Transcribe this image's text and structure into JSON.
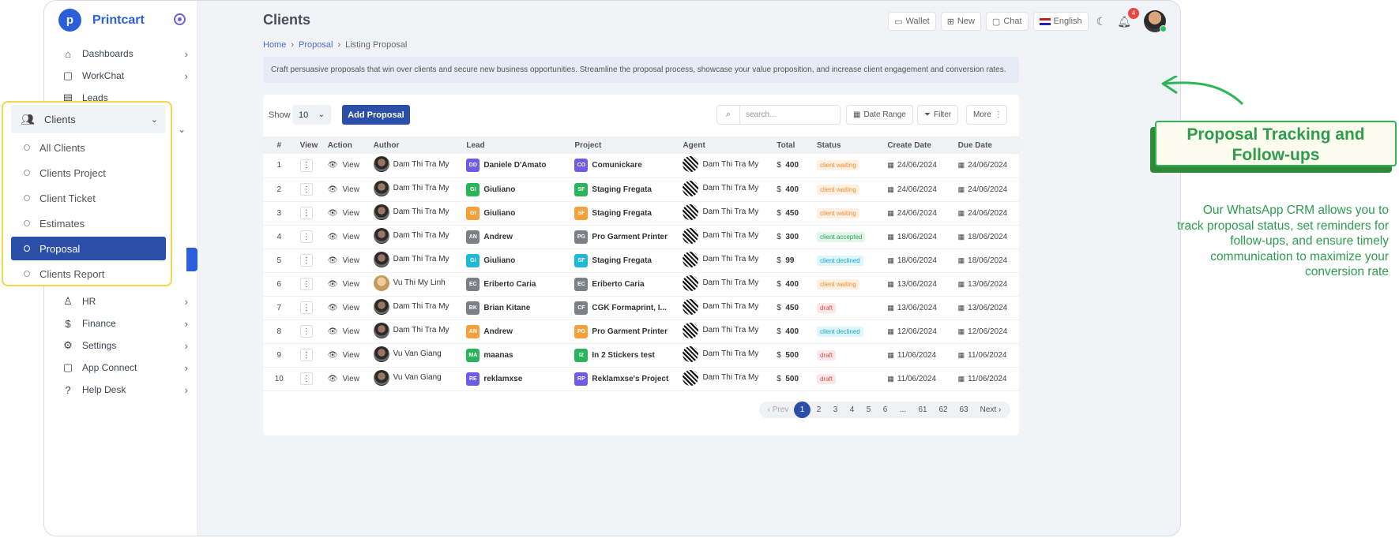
{
  "brand": {
    "name": "Printcart",
    "logo_letter": "p"
  },
  "sidebar": {
    "items": [
      {
        "label": "Dashboards",
        "icon": "home-icon",
        "top": 55
      },
      {
        "label": "WorkChat",
        "icon": "chat-icon",
        "top": 83
      },
      {
        "label": "Leads",
        "icon": "clipboard-icon",
        "top": 111
      },
      {
        "label": "HR",
        "icon": "person-icon",
        "top": 369
      },
      {
        "label": "Finance",
        "icon": "dollar-icon",
        "top": 397
      },
      {
        "label": "Settings",
        "icon": "gear-icon",
        "top": 425
      },
      {
        "label": "App Connect",
        "icon": "square-icon",
        "top": 453
      },
      {
        "label": "Help Desk",
        "icon": "help-icon",
        "top": 481
      }
    ]
  },
  "submenu": {
    "title": "Clients",
    "items": [
      "All Clients",
      "Clients Project",
      "Client Ticket",
      "Estimates",
      "Proposal",
      "Clients Report"
    ],
    "active": "Proposal"
  },
  "header": {
    "title": "Clients",
    "breadcrumb": [
      "Home",
      "Proposal",
      "Listing Proposal"
    ],
    "wallet": "Wallet",
    "new": "New",
    "chat": "Chat",
    "language": "English",
    "notifications": "4"
  },
  "description": "Craft persuasive proposals that win over clients and secure new business opportunities. Streamline the proposal process, showcase your value proposition, and increase client engagement and conversion rates.",
  "toolbar": {
    "show_label": "Show",
    "page_size": "10",
    "add_label": "Add Proposal",
    "search_placeholder": "search...",
    "date_range": "Date Range",
    "filter": "Filter",
    "more": "More"
  },
  "table": {
    "headers": [
      "#",
      "View",
      "Action",
      "Author",
      "Lead",
      "Project",
      "Agent",
      "Total",
      "Status",
      "Create Date",
      "Due Date"
    ],
    "rows": [
      {
        "n": "1",
        "author": "Dam Thi Tra My",
        "lead_chip": "DD",
        "lead_color": "#6c5ce7",
        "lead": "Daniele D'Amato",
        "proj_chip": "CO",
        "proj_color": "#6c5ce7",
        "project": "Comunickare",
        "agent": "Dam Thi Tra My",
        "total": "400",
        "status": "client waiting",
        "kind": "wait",
        "created": "24/06/2024",
        "due": "24/06/2024"
      },
      {
        "n": "2",
        "author": "Dam Thi Tra My",
        "lead_chip": "GI",
        "lead_color": "#2bb55a",
        "lead": "Giuliano",
        "proj_chip": "SF",
        "proj_color": "#2bb55a",
        "project": "Staging Fregata",
        "agent": "Dam Thi Tra My",
        "total": "400",
        "status": "client waiting",
        "kind": "wait",
        "created": "24/06/2024",
        "due": "24/06/2024"
      },
      {
        "n": "3",
        "author": "Dam Thi Tra My",
        "lead_chip": "GI",
        "lead_color": "#f5a03a",
        "lead": "Giuliano",
        "proj_chip": "SF",
        "proj_color": "#f5a03a",
        "project": "Staging Fregata",
        "agent": "Dam Thi Tra My",
        "total": "450",
        "status": "client waiting",
        "kind": "wait",
        "created": "24/06/2024",
        "due": "24/06/2024"
      },
      {
        "n": "4",
        "author": "Dam Thi Tra My",
        "lead_chip": "AN",
        "lead_color": "#7c7f86",
        "lead": "Andrew",
        "proj_chip": "PG",
        "proj_color": "#7c7f86",
        "project": "Pro Garment Printer",
        "agent": "Dam Thi Tra My",
        "total": "300",
        "status": "client accepted",
        "kind": "acc",
        "created": "18/06/2024",
        "due": "18/06/2024"
      },
      {
        "n": "5",
        "author": "Dam Thi Tra My",
        "lead_chip": "GI",
        "lead_color": "#1fb8d6",
        "lead": "Giuliano",
        "proj_chip": "SF",
        "proj_color": "#1fb8d6",
        "project": "Staging Fregata",
        "agent": "Dam Thi Tra My",
        "total": "99",
        "status": "client declined",
        "kind": "dec",
        "created": "18/06/2024",
        "due": "18/06/2024"
      },
      {
        "n": "6",
        "author": "Vu Thi My Linh",
        "lady": true,
        "lead_chip": "EC",
        "lead_color": "#7c7f86",
        "lead": "Eriberto Caria",
        "proj_chip": "EC",
        "proj_color": "#7c7f86",
        "project": "Eriberto Caria",
        "agent": "Dam Thi Tra My",
        "total": "400",
        "status": "client waiting",
        "kind": "wait",
        "created": "13/06/2024",
        "due": "13/06/2024"
      },
      {
        "n": "7",
        "author": "Dam Thi Tra My",
        "lead_chip": "BK",
        "lead_color": "#7c7f86",
        "lead": "Brian Kitane",
        "proj_chip": "CF",
        "proj_color": "#7c7f86",
        "project": "CGK Formaprint, I...",
        "agent": "Dam Thi Tra My",
        "total": "450",
        "status": "draft",
        "kind": "draft",
        "created": "13/06/2024",
        "due": "13/06/2024"
      },
      {
        "n": "8",
        "author": "Dam Thi Tra My",
        "lead_chip": "AN",
        "lead_color": "#f5a03a",
        "lead": "Andrew",
        "proj_chip": "PG",
        "proj_color": "#f5a03a",
        "project": "Pro Garment Printer",
        "agent": "Dam Thi Tra My",
        "total": "400",
        "status": "client declined",
        "kind": "dec",
        "created": "12/06/2024",
        "due": "12/06/2024"
      },
      {
        "n": "9",
        "author": "Vu Van Giang",
        "lead_chip": "MA",
        "lead_color": "#2bb55a",
        "lead": "maanas",
        "proj_chip": "I2",
        "proj_color": "#2bb55a",
        "project": "In 2 Stickers test",
        "agent": "Dam Thi Tra My",
        "total": "500",
        "status": "draft",
        "kind": "draft",
        "created": "11/06/2024",
        "due": "11/06/2024"
      },
      {
        "n": "10",
        "author": "Vu Van Giang",
        "lead_chip": "RE",
        "lead_color": "#6c5ce7",
        "lead": "reklamxse",
        "proj_chip": "RP",
        "proj_color": "#6c5ce7",
        "project": "Reklamxse's Project",
        "agent": "Dam Thi Tra My",
        "total": "500",
        "status": "draft",
        "kind": "draft",
        "created": "11/06/2024",
        "due": "11/06/2024"
      }
    ],
    "view_label": "View",
    "currency": "$"
  },
  "pagination": {
    "prev": "‹ Prev",
    "pages": [
      "1",
      "2",
      "3",
      "4",
      "5",
      "6",
      "...",
      "61",
      "62",
      "63"
    ],
    "active": "1",
    "next": "Next ›"
  },
  "callout": {
    "title": "Proposal Tracking and Follow-ups",
    "text": "Our WhatsApp CRM allows you to track proposal status, set reminders for follow-ups, and ensure timely communication to maximize your conversion rate"
  }
}
